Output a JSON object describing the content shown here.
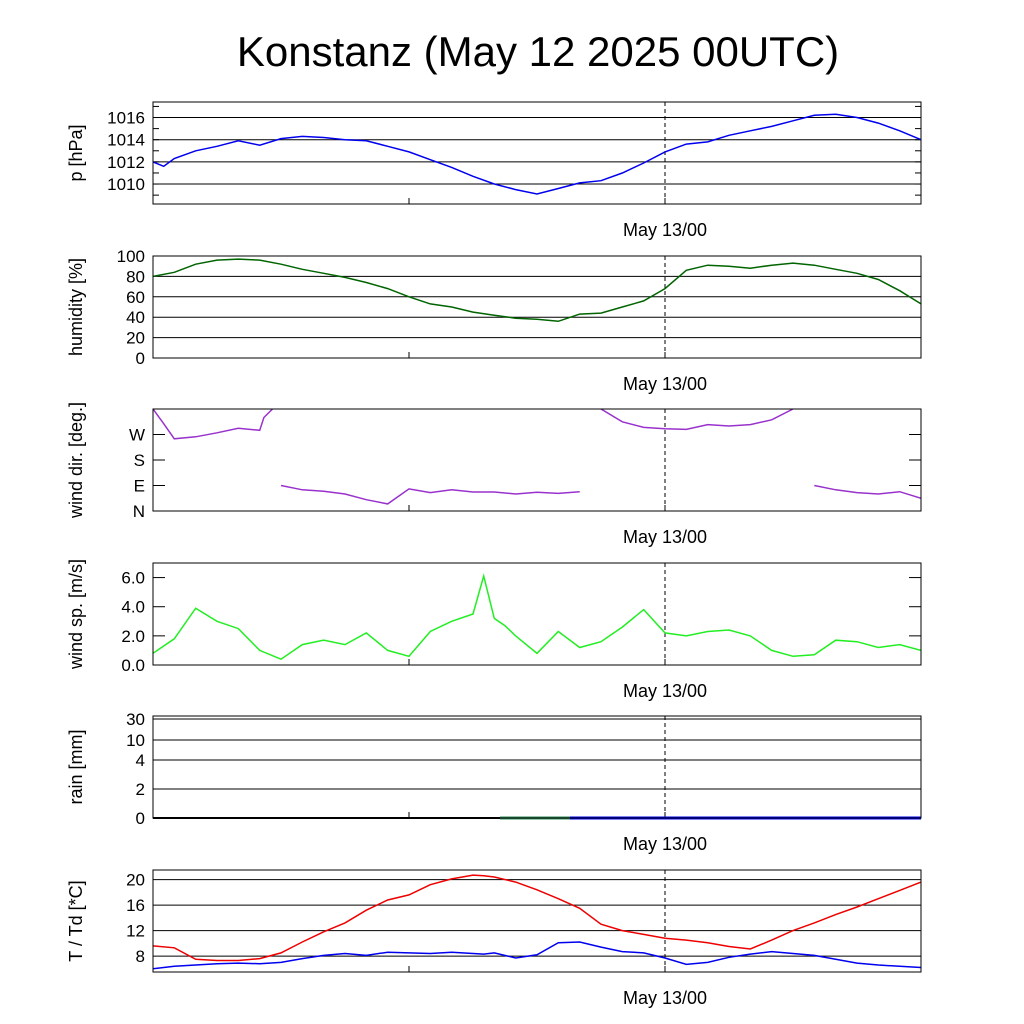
{
  "title": "Konstanz (May 12 2025 00UTC)",
  "x_tick_label": "May 13/00",
  "colors": {
    "pressure": "#0000ee",
    "humidity": "#006400",
    "wind_direction": "#9932cc",
    "wind_speed": "#22ee22",
    "rain_green": "#2e8b57",
    "rain_blue": "#0000ee",
    "temperature": "#ee0000",
    "dewpoint": "#0000ee"
  },
  "chart_data": [
    {
      "type": "line",
      "ylabel": "p [hPa]",
      "yticks": [
        "1010",
        "1012",
        "1014",
        "1016"
      ],
      "ylim": [
        1008.2,
        1017.4
      ],
      "grid": true,
      "x": [
        0,
        0.5,
        1,
        2,
        3,
        4,
        5,
        6,
        7,
        8,
        9,
        10,
        11,
        12,
        13,
        14,
        15,
        16,
        17,
        18,
        19,
        20,
        21,
        22,
        23,
        24,
        25,
        26,
        27,
        28,
        29,
        30,
        31,
        32,
        33,
        34,
        35,
        36
      ],
      "series": [
        {
          "values": [
            1012.0,
            1011.6,
            1012.3,
            1013.0,
            1013.4,
            1013.9,
            1013.5,
            1014.1,
            1014.3,
            1014.2,
            1014.0,
            1013.9,
            1013.4,
            1012.9,
            1012.2,
            1011.5,
            1010.7,
            1010.0,
            1009.5,
            1009.1,
            1009.6,
            1010.1,
            1010.3,
            1011.0,
            1011.9,
            1012.9,
            1013.6,
            1013.8,
            1014.4,
            1014.8,
            1015.2,
            1015.7,
            1016.2,
            1016.3,
            1016.0,
            1015.5,
            1014.8,
            1014.0
          ]
        }
      ]
    },
    {
      "type": "line",
      "ylabel": "humidity [%]",
      "yticks": [
        "0",
        "20",
        "40",
        "60",
        "80",
        "100"
      ],
      "ylim": [
        0,
        100
      ],
      "grid": true,
      "x": [
        0,
        1,
        2,
        3,
        4,
        5,
        6,
        7,
        8,
        9,
        10,
        11,
        12,
        13,
        14,
        15,
        16,
        17,
        18,
        19,
        20,
        21,
        22,
        23,
        24,
        25,
        26,
        27,
        28,
        29,
        30,
        31,
        32,
        33,
        34,
        35,
        36
      ],
      "series": [
        {
          "values": [
            80,
            84,
            92,
            96,
            97,
            96,
            92,
            87,
            83,
            79,
            74,
            68,
            60,
            53,
            50,
            45,
            42,
            39,
            38,
            36,
            43,
            44,
            50,
            56,
            68,
            86,
            91,
            90,
            88,
            91,
            93,
            91,
            87,
            83,
            77,
            66,
            53
          ]
        }
      ]
    },
    {
      "type": "line",
      "ylabel": "wind dir. [deg.]",
      "yticks": [
        "N",
        "E",
        "S",
        "W"
      ],
      "ylim": [
        0,
        360
      ],
      "grid": false,
      "x": [
        0,
        0.5,
        1,
        2,
        3,
        4,
        5,
        5.2,
        5.6,
        6,
        7,
        8,
        9,
        10,
        11,
        12,
        13,
        14,
        15,
        16,
        17,
        18,
        19,
        20,
        21,
        22,
        23,
        24,
        25,
        26,
        27,
        28,
        29,
        30,
        31,
        32,
        33,
        34,
        35,
        36
      ],
      "series": [
        {
          "values": [
            360,
            308,
            255,
            262,
            276,
            292,
            285,
            330,
            360,
            90,
            75,
            70,
            60,
            40,
            25,
            78,
            65,
            75,
            67,
            67,
            60,
            66,
            62,
            68,
            360,
            315,
            295,
            290,
            288,
            305,
            300,
            305,
            322,
            360,
            90,
            75,
            65,
            60,
            68,
            45
          ]
        }
      ]
    },
    {
      "type": "line",
      "ylabel": "wind sp. [m/s]",
      "yticks": [
        "0.0",
        "2.0",
        "4.0",
        "6.0"
      ],
      "ylim": [
        0,
        7
      ],
      "grid": false,
      "x": [
        0,
        1,
        2,
        3,
        4,
        5,
        6,
        7,
        8,
        9,
        10,
        11,
        12,
        13,
        14,
        15,
        15.5,
        16,
        16.5,
        17,
        18,
        19,
        20,
        21,
        22,
        23,
        24,
        25,
        26,
        27,
        28,
        29,
        30,
        31,
        32,
        33,
        34,
        35,
        36
      ],
      "series": [
        {
          "values": [
            0.8,
            1.8,
            3.9,
            3.0,
            2.5,
            1.0,
            0.4,
            1.4,
            1.7,
            1.4,
            2.2,
            1.0,
            0.6,
            2.3,
            3.0,
            3.5,
            6.1,
            3.2,
            2.7,
            2.0,
            0.8,
            2.3,
            1.2,
            1.6,
            2.6,
            3.8,
            2.2,
            2.0,
            2.3,
            2.4,
            2.0,
            1.0,
            0.6,
            0.7,
            1.7,
            1.6,
            1.2,
            1.4,
            1.0
          ]
        }
      ]
    },
    {
      "type": "line",
      "ylabel": "rain [mm]",
      "yticks": [
        "0",
        "2",
        "4",
        "10",
        "30"
      ],
      "grid": true,
      "x": [
        0,
        36
      ],
      "series": [
        {
          "values": [
            0,
            0
          ]
        }
      ]
    },
    {
      "type": "line",
      "ylabel": "T / Td [*C]",
      "yticks": [
        "8",
        "12",
        "16",
        "20"
      ],
      "ylim": [
        5.5,
        21.5
      ],
      "grid": true,
      "x": [
        0,
        1,
        2,
        3,
        4,
        5,
        6,
        7,
        8,
        9,
        10,
        11,
        12,
        13,
        14,
        15,
        15.5,
        16,
        17,
        18,
        19,
        20,
        21,
        22,
        23,
        24,
        25,
        26,
        27,
        28,
        29,
        30,
        31,
        32,
        33,
        34,
        35,
        36
      ],
      "series": [
        {
          "values": [
            9.6,
            9.3,
            7.5,
            7.3,
            7.3,
            7.6,
            8.5,
            10.2,
            11.8,
            13.2,
            15.2,
            16.8,
            17.6,
            19.2,
            20.1,
            20.7,
            20.6,
            20.4,
            19.6,
            18.4,
            17.0,
            15.5,
            13.0,
            12.0,
            11.4,
            10.8,
            10.5,
            10.1,
            9.5,
            9.1,
            10.5,
            12.0,
            13.2,
            14.5,
            15.7,
            17.0,
            18.3,
            19.6
          ]
        },
        {
          "values": [
            6.0,
            6.4,
            6.6,
            6.8,
            6.9,
            6.8,
            7.0,
            7.6,
            8.1,
            8.4,
            8.1,
            8.6,
            8.5,
            8.4,
            8.6,
            8.4,
            8.3,
            8.5,
            7.7,
            8.2,
            10.1,
            10.2,
            9.4,
            8.7,
            8.5,
            7.7,
            6.7,
            7.0,
            7.8,
            8.3,
            8.7,
            8.4,
            8.1,
            7.5,
            6.9,
            6.6,
            6.4,
            6.2
          ]
        }
      ]
    }
  ]
}
